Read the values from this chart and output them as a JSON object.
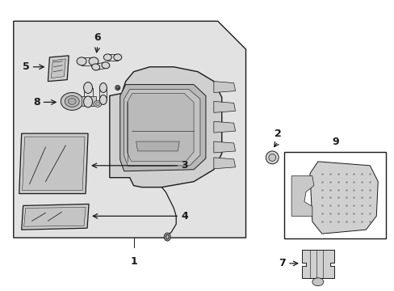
{
  "bg_color": "#ffffff",
  "fill_gray": "#d8d8d8",
  "line_color": "#1a1a1a",
  "lw": 0.7,
  "fig_w": 4.89,
  "fig_h": 3.6,
  "dpi": 100
}
